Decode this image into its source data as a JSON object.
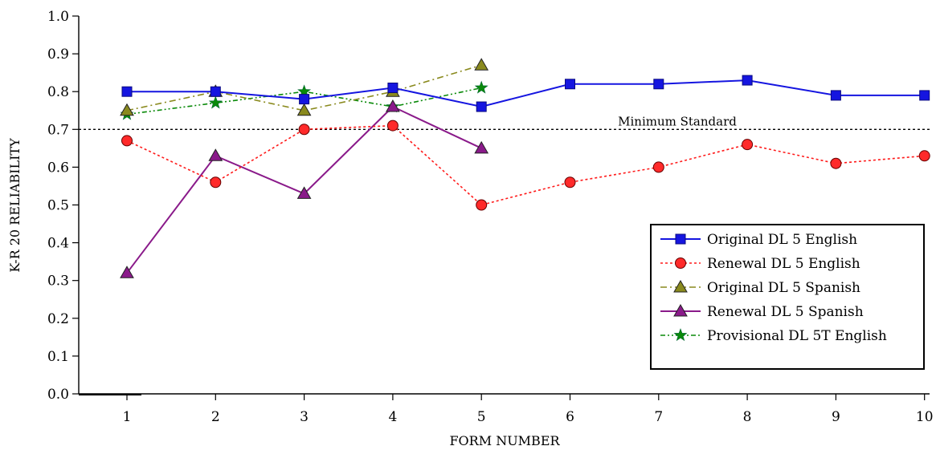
{
  "chart_data": {
    "type": "line",
    "xlabel": "FORM NUMBER",
    "ylabel": "K-R 20 RELIABILITY",
    "ylim": [
      0,
      1.0
    ],
    "xlim": [
      0.45,
      10
    ],
    "x_ticks": [
      1,
      2,
      3,
      4,
      5,
      6,
      7,
      8,
      9,
      10
    ],
    "y_ticks": [
      "0.0",
      "0.1",
      "0.2",
      "0.3",
      "0.4",
      "0.5",
      "0.6",
      "0.7",
      "0.8",
      "0.9",
      "1.0"
    ],
    "grid": false,
    "legend_position": "bottom-right",
    "reference_line": {
      "y": 0.7,
      "label": "Minimum Standard",
      "style": "dotted"
    },
    "series": [
      {
        "name": "Original DL 5 English",
        "color": "#1515e0",
        "marker": "square",
        "line": "solid",
        "x": [
          1,
          2,
          3,
          4,
          5,
          6,
          7,
          8,
          9,
          10
        ],
        "values": [
          0.8,
          0.8,
          0.78,
          0.81,
          0.76,
          0.82,
          0.82,
          0.83,
          0.79,
          0.79
        ]
      },
      {
        "name": "Renewal DL 5 English",
        "color": "#ff1a1a",
        "marker": "circle",
        "line": "dotted",
        "x": [
          1,
          2,
          3,
          4,
          5,
          6,
          7,
          8,
          9,
          10
        ],
        "values": [
          0.67,
          0.56,
          0.7,
          0.71,
          0.5,
          0.56,
          0.6,
          0.66,
          0.61,
          0.63
        ]
      },
      {
        "name": "Original DL 5 Spanish",
        "color": "#8a8a1e",
        "marker": "triangle",
        "line": "dashdot",
        "x": [
          1,
          2,
          3,
          4,
          5
        ],
        "values": [
          0.75,
          0.8,
          0.75,
          0.8,
          0.87
        ]
      },
      {
        "name": "Renewal DL 5 Spanish",
        "color": "#8a1a8a",
        "marker": "triangle",
        "line": "solid",
        "x": [
          1,
          2,
          3,
          4,
          5
        ],
        "values": [
          0.32,
          0.63,
          0.53,
          0.76,
          0.65
        ]
      },
      {
        "name": "Provisional DL 5T English",
        "color": "#0a8a0a",
        "marker": "star",
        "line": "dashdotdot",
        "x": [
          1,
          2,
          3,
          4,
          5
        ],
        "values": [
          0.74,
          0.77,
          0.8,
          0.76,
          0.81
        ]
      }
    ]
  }
}
